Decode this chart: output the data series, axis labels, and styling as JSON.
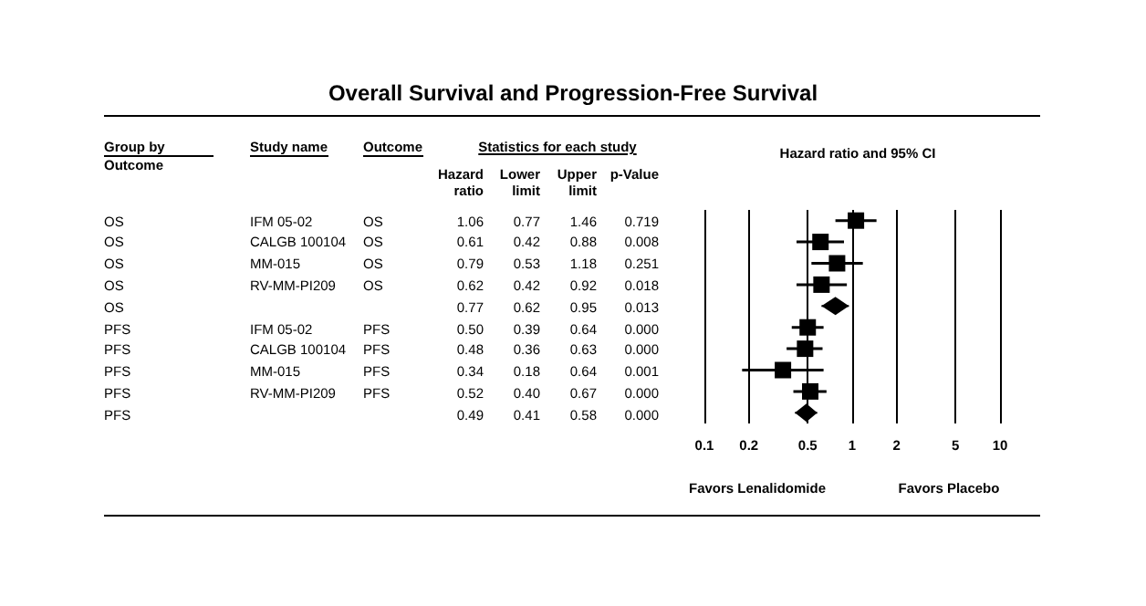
{
  "chart_data": [
    {
      "type": "other",
      "title": "Overall Survival and Progression-Free Survival",
      "subtitle": "Statistics for each study",
      "categories": [
        "Group by\nOutcome",
        "Study name",
        "Outcome",
        "Hazard\nratio",
        "Lower\nlimit",
        "Upper\nlimit",
        "p-Value"
      ],
      "annotations": [
        "OS",
        "IFM 05-02",
        "OS",
        "1.06",
        "0.77",
        "1.46",
        "0.719",
        "OS",
        "CALGB 100104",
        "OS",
        "0.61",
        "0.42",
        "0.88",
        "0.008",
        "OS",
        "MM-015",
        "OS",
        "0.79",
        "0.53",
        "1.18",
        "0.251",
        "OS",
        "RV-MM-PI209",
        "OS",
        "0.62",
        "0.42",
        "0.92",
        "0.018",
        "OS",
        null,
        null,
        "0.77",
        "0.62",
        "0.95",
        "0.013",
        "PFS",
        "IFM 05-02",
        "PFS",
        "0.50",
        "0.39",
        "0.64",
        "0.000",
        "PFS",
        "CALGB 100104",
        "PFS",
        "0.48",
        "0.36",
        "0.63",
        "0.000",
        "PFS",
        "MM-015",
        "PFS",
        "0.34",
        "0.18",
        "0.64",
        "0.001",
        "PFS",
        "RV-MM-PI209",
        "PFS",
        "0.52",
        "0.40",
        "0.67",
        "0.000",
        "PFS",
        null,
        null,
        "0.49",
        "0.41",
        "0.58",
        "0.000"
      ]
    },
    {
      "type": "scatter",
      "subtitle": "Hazard ratio and 95% CI",
      "orientation": "horizontal",
      "categories": [
        null,
        null,
        null,
        null,
        null,
        null,
        null,
        null,
        null,
        null
      ],
      "series": [
        {
          "color": "#000000",
          "marker": "square",
          "values": [
            1.06,
            0.61,
            0.79,
            0.62,
            null,
            0.5,
            0.48,
            0.34,
            0.52,
            null
          ],
          "errors": [
            [
              0.77,
              1.46
            ],
            [
              0.42,
              0.88
            ],
            [
              0.53,
              1.18
            ],
            [
              0.42,
              0.92
            ],
            null,
            [
              0.39,
              0.64
            ],
            [
              0.36,
              0.63
            ],
            [
              0.18,
              0.64
            ],
            [
              0.4,
              0.67
            ],
            null
          ]
        },
        {
          "color": "#000000",
          "marker": "diamond",
          "values": [
            null,
            null,
            null,
            null,
            0.77,
            null,
            null,
            null,
            null,
            0.49
          ],
          "errors": [
            null,
            null,
            null,
            null,
            [
              0.62,
              0.95
            ],
            null,
            null,
            null,
            null,
            [
              0.41,
              0.58
            ]
          ]
        }
      ],
      "log": "x",
      "xlim": [
        0.1,
        10
      ],
      "xticks": [
        0.1,
        0.2,
        0.5,
        1,
        2,
        5,
        10
      ],
      "grid": "x",
      "tick_labels": "x",
      "annotations": [
        "Favors Lenalidomide",
        "Favors Placebo"
      ]
    }
  ]
}
